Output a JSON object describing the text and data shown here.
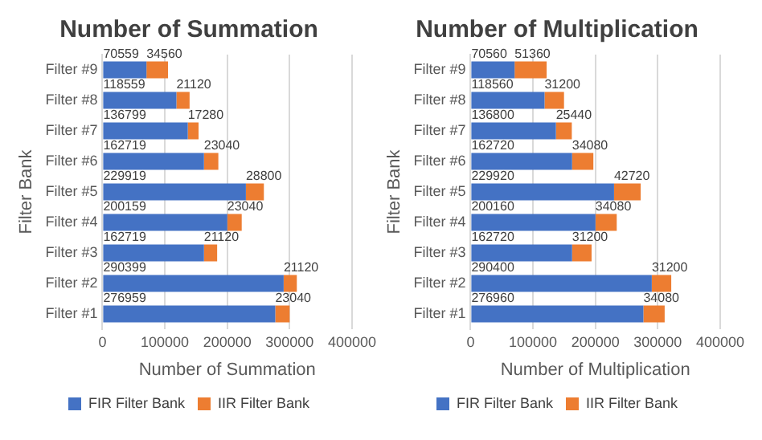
{
  "chart_data": [
    {
      "type": "bar",
      "orientation": "horizontal",
      "stacked": true,
      "title": "Number of Summation",
      "xlabel": "Number of Summation",
      "ylabel": "Filter Bank",
      "categories": [
        "Filter #9",
        "Filter #8",
        "Filter #7",
        "Filter #6",
        "Filter #5",
        "Filter #4",
        "Filter #3",
        "Filter #2",
        "Filter #1"
      ],
      "series": [
        {
          "name": "FIR Filter Bank",
          "color": "#4472c4",
          "values": [
            70559,
            118559,
            136799,
            162719,
            229919,
            200159,
            162719,
            290399,
            276959
          ]
        },
        {
          "name": "IIR Filter Bank",
          "color": "#ed7d31",
          "values": [
            34560,
            21120,
            17280,
            23040,
            28800,
            23040,
            21120,
            21120,
            23040
          ]
        }
      ],
      "xlim": [
        0,
        400000
      ],
      "xticks": [
        0,
        100000,
        200000,
        300000,
        400000
      ],
      "grid": "x",
      "legend": "bottom",
      "data_labels": true
    },
    {
      "type": "bar",
      "orientation": "horizontal",
      "stacked": true,
      "title": "Number of Multiplication",
      "xlabel": "Number of Multiplication",
      "ylabel": "Filter Bank",
      "categories": [
        "Filter #9",
        "Filter #8",
        "Filter #7",
        "Filter #6",
        "Filter #5",
        "Filter #4",
        "Filter #3",
        "Filter #2",
        "Filter #1"
      ],
      "series": [
        {
          "name": "FIR Filter Bank",
          "color": "#4472c4",
          "values": [
            70560,
            118560,
            136800,
            162720,
            229920,
            200160,
            162720,
            290400,
            276960
          ]
        },
        {
          "name": "IIR Filter Bank",
          "color": "#ed7d31",
          "values": [
            51360,
            31200,
            25440,
            34080,
            42720,
            34080,
            31200,
            31200,
            34080
          ]
        }
      ],
      "xlim": [
        0,
        400000
      ],
      "xticks": [
        0,
        100000,
        200000,
        300000,
        400000
      ],
      "grid": "x",
      "legend": "bottom",
      "data_labels": true
    }
  ]
}
